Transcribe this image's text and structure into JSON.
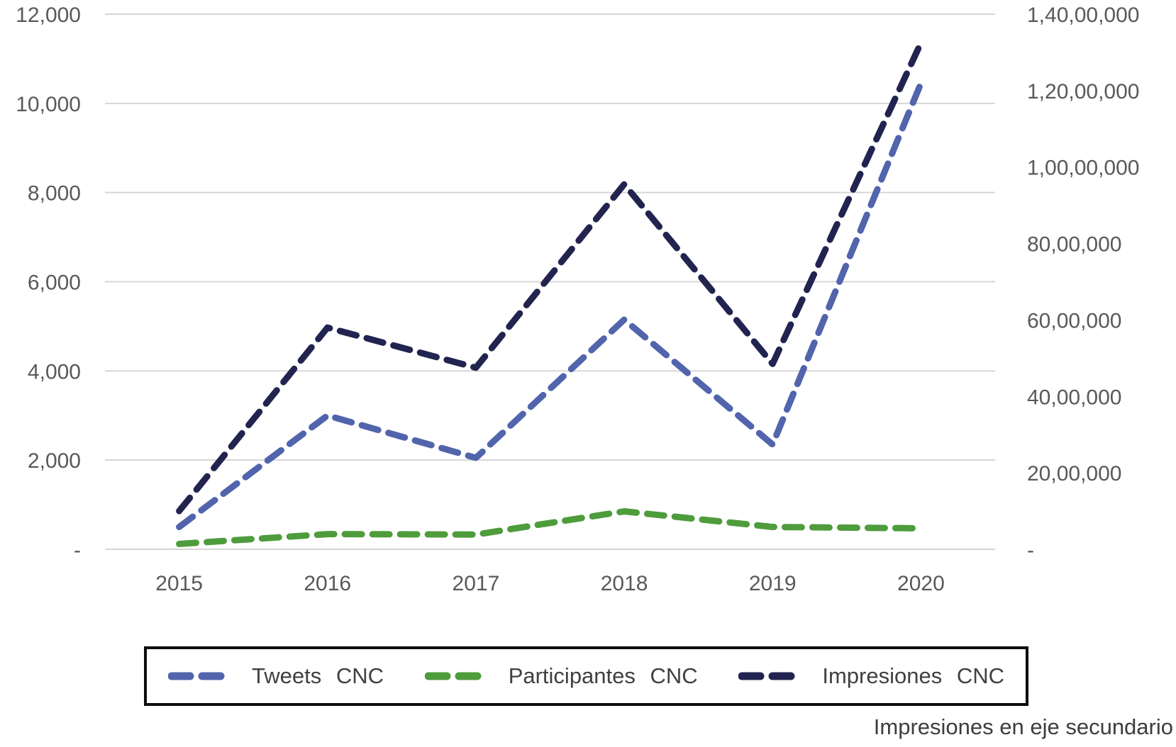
{
  "chart_data": {
    "type": "line",
    "title": "",
    "categories": [
      "2015",
      "2016",
      "2017",
      "2018",
      "2019",
      "2020"
    ],
    "series": [
      {
        "name": "Tweets CNC",
        "axis": "left",
        "color": "#5164AC",
        "line_style": "dashed",
        "values": [
          500,
          3000,
          2050,
          5150,
          2350,
          10450
        ]
      },
      {
        "name": "Participantes CNC",
        "axis": "left",
        "color": "#4E9C3C",
        "line_style": "dashed",
        "values": [
          120,
          340,
          330,
          850,
          500,
          470
        ]
      },
      {
        "name": "Impresiones CNC",
        "axis": "right",
        "color": "#21244F",
        "line_style": "dashed",
        "values": [
          1000000,
          5800000,
          4750000,
          9550000,
          4850000,
          13250000
        ]
      }
    ],
    "left_axis": {
      "min": 0,
      "max": 12000,
      "step": 2000,
      "tick_labels": [
        "-",
        "2,000",
        "4,000",
        "6,000",
        "8,000",
        "10,000",
        "12,000"
      ]
    },
    "right_axis": {
      "min": 0,
      "max": 14000000,
      "step": 2000000,
      "tick_labels": [
        "-",
        "20,00,000",
        "40,00,000",
        "60,00,000",
        "80,00,000",
        "1,00,00,000",
        "1,20,00,000",
        "1,40,00,000"
      ]
    },
    "grid": "horizontal lines at left-axis ticks",
    "legend_position": "bottom boxed",
    "annotation": "Impresiones en eje secundario"
  },
  "styles": {
    "grid_color": "#D6D6D6",
    "tick_text_color": "#595959",
    "legend_text_color": "#404040",
    "legend_border_color": "#0D0D0D",
    "background": "#FFFFFF"
  }
}
